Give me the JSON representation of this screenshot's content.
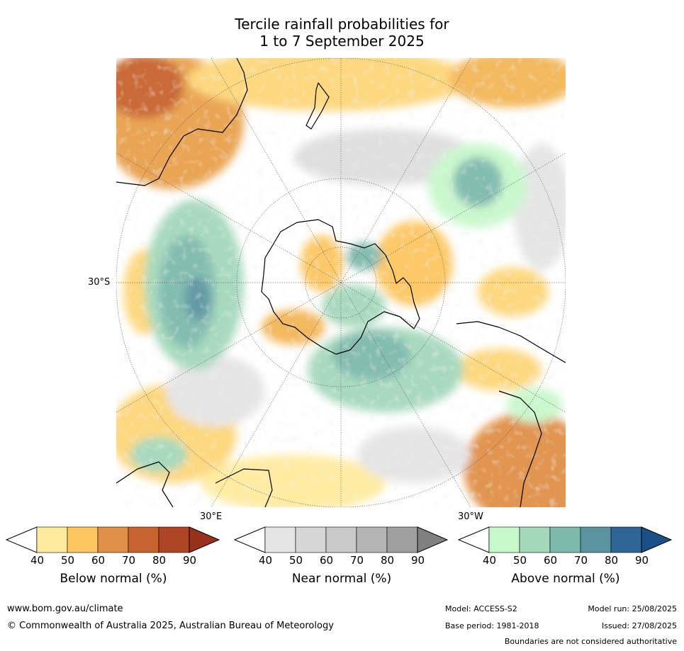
{
  "title": {
    "line1": "Tercile rainfall probabilities for",
    "line2": "1 to 7 September 2025"
  },
  "map": {
    "labels": {
      "lat": "30°S",
      "lon_east": "30°E",
      "lon_west": "30°W"
    }
  },
  "colorbars": [
    {
      "label": "Below normal (%)",
      "ticks": [
        "40",
        "50",
        "60",
        "70",
        "80",
        "90"
      ],
      "colors": [
        "#ffeb9e",
        "#fdc661",
        "#e09046",
        "#c7632e",
        "#b04525",
        "#98301e"
      ]
    },
    {
      "label": "Near normal (%)",
      "ticks": [
        "40",
        "50",
        "60",
        "70",
        "80",
        "90"
      ],
      "colors": [
        "#e4e4e4",
        "#d6d6d6",
        "#c9c9c9",
        "#b4b4b4",
        "#9f9f9f",
        "#808080"
      ]
    },
    {
      "label": "Above normal (%)",
      "ticks": [
        "40",
        "50",
        "60",
        "70",
        "80",
        "90"
      ],
      "colors": [
        "#c7f8cb",
        "#a4d8bb",
        "#7eb9ad",
        "#5b94a0",
        "#2f6496",
        "#1a4f87"
      ]
    }
  ],
  "footer": {
    "website": "www.bom.gov.au/climate",
    "copyright": "© Commonwealth of Australia 2025, Australian Bureau of Meteorology",
    "model": "Model: ACCESS-S2",
    "base_period": "Base period: 1981-2018",
    "model_run": "Model run: 25/08/2025",
    "issued": "Issued: 27/08/2025",
    "disclaimer": "Boundaries are not considered authoritative"
  }
}
